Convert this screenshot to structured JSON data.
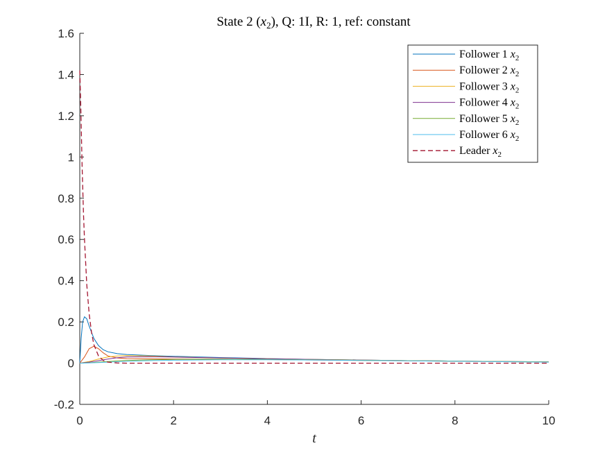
{
  "chart_data": {
    "type": "line",
    "title_main": "State 2 (",
    "title_var": "x",
    "title_sub": "2",
    "title_rest": "), Q: 1I, R: 1, ref: constant",
    "xlabel": "t",
    "ylabel": "",
    "xlim": [
      0,
      10
    ],
    "ylim": [
      -0.2,
      1.6
    ],
    "xticks": [
      0,
      2,
      4,
      6,
      8,
      10
    ],
    "yticks": [
      -0.2,
      0,
      0.2,
      0.4,
      0.6,
      0.8,
      1,
      1.2,
      1.4,
      1.6
    ],
    "xtick_labels": [
      "0",
      "2",
      "4",
      "6",
      "8",
      "10"
    ],
    "ytick_labels": [
      "-0.2",
      "0",
      "0.2",
      "0.4",
      "0.6",
      "0.8",
      "1",
      "1.2",
      "1.4",
      "1.6"
    ],
    "grid": false,
    "legend_position": "top-right",
    "series": [
      {
        "name": "Follower 1",
        "var": "x",
        "sub": "2",
        "color": "#0072BD",
        "dashed": false,
        "x": [
          0,
          0.03,
          0.06,
          0.1,
          0.15,
          0.2,
          0.3,
          0.4,
          0.5,
          0.6,
          0.8,
          1,
          1.5,
          2,
          3,
          4,
          5,
          6,
          7,
          8,
          9,
          10
        ],
        "y": [
          0,
          0.12,
          0.2,
          0.225,
          0.215,
          0.18,
          0.12,
          0.085,
          0.065,
          0.055,
          0.046,
          0.042,
          0.037,
          0.033,
          0.027,
          0.022,
          0.018,
          0.015,
          0.012,
          0.01,
          0.008,
          0.006
        ]
      },
      {
        "name": "Follower 2",
        "var": "x",
        "sub": "2",
        "color": "#D95319",
        "dashed": false,
        "x": [
          0,
          0.1,
          0.2,
          0.3,
          0.4,
          0.5,
          0.6,
          0.8,
          1,
          1.5,
          2,
          3,
          4,
          5,
          6,
          7,
          8,
          9,
          10
        ],
        "y": [
          0,
          0.03,
          0.07,
          0.082,
          0.07,
          0.05,
          0.035,
          0.025,
          0.022,
          0.021,
          0.02,
          0.019,
          0.017,
          0.015,
          0.013,
          0.011,
          0.009,
          0.007,
          0.005
        ]
      },
      {
        "name": "Follower 3",
        "var": "x",
        "sub": "2",
        "color": "#EDB120",
        "dashed": false,
        "x": [
          0,
          0.2,
          0.4,
          0.6,
          0.8,
          1,
          1.5,
          2,
          3,
          4,
          5,
          6,
          7,
          8,
          9,
          10
        ],
        "y": [
          0,
          0.008,
          0.02,
          0.03,
          0.035,
          0.037,
          0.035,
          0.03,
          0.025,
          0.021,
          0.018,
          0.015,
          0.012,
          0.01,
          0.008,
          0.006
        ]
      },
      {
        "name": "Follower 4",
        "var": "x",
        "sub": "2",
        "color": "#7E2F8E",
        "dashed": false,
        "x": [
          0,
          0.2,
          0.4,
          0.6,
          0.8,
          1,
          1.5,
          2,
          3,
          4,
          5,
          6,
          7,
          8,
          9,
          10
        ],
        "y": [
          0,
          0.005,
          0.012,
          0.02,
          0.026,
          0.03,
          0.031,
          0.029,
          0.025,
          0.021,
          0.018,
          0.015,
          0.012,
          0.01,
          0.008,
          0.006
        ]
      },
      {
        "name": "Follower 5",
        "var": "x",
        "sub": "2",
        "color": "#77AC30",
        "dashed": false,
        "x": [
          0,
          0.2,
          0.4,
          0.6,
          0.8,
          1,
          1.5,
          2,
          3,
          4,
          5,
          6,
          7,
          8,
          9,
          10
        ],
        "y": [
          0,
          0.002,
          0.005,
          0.008,
          0.011,
          0.013,
          0.016,
          0.018,
          0.019,
          0.018,
          0.016,
          0.014,
          0.012,
          0.01,
          0.008,
          0.006
        ]
      },
      {
        "name": "Follower 6",
        "var": "x",
        "sub": "2",
        "color": "#4DBEEE",
        "dashed": false,
        "x": [
          0,
          0.2,
          0.4,
          0.6,
          0.8,
          1,
          1.5,
          2,
          3,
          4,
          5,
          6,
          7,
          8,
          9,
          10
        ],
        "y": [
          0,
          0.001,
          0.003,
          0.005,
          0.007,
          0.009,
          0.012,
          0.014,
          0.016,
          0.016,
          0.015,
          0.013,
          0.011,
          0.009,
          0.007,
          0.005
        ]
      },
      {
        "name": "Leader",
        "var": "x",
        "sub": "2",
        "color": "#A2142F",
        "dashed": true,
        "x": [
          0,
          0.02,
          0.05,
          0.08,
          0.1,
          0.15,
          0.2,
          0.25,
          0.3,
          0.4,
          0.5,
          0.6,
          0.8,
          1,
          1.5,
          2,
          3,
          4,
          5,
          6,
          7,
          8,
          9,
          10
        ],
        "y": [
          1.42,
          1.25,
          0.95,
          0.72,
          0.6,
          0.38,
          0.24,
          0.15,
          0.09,
          0.035,
          0.013,
          0.005,
          0.001,
          0,
          0,
          0,
          0,
          0,
          0,
          0,
          0,
          0,
          0,
          0
        ]
      }
    ]
  }
}
